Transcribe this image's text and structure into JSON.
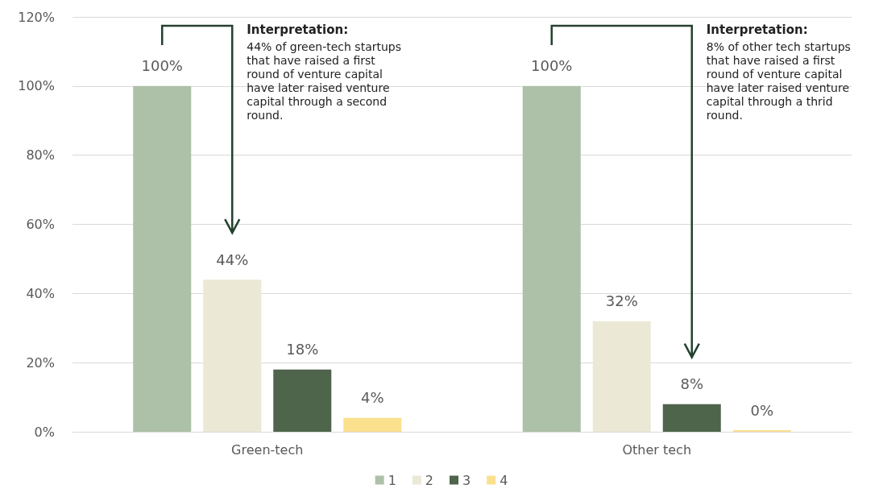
{
  "chart_data": {
    "type": "bar",
    "categories": [
      "Green-tech",
      "Other tech"
    ],
    "series": [
      {
        "name": "1",
        "color": "#adc0a8",
        "values": [
          100,
          100
        ],
        "value_labels": [
          "100%",
          "100%"
        ]
      },
      {
        "name": "2",
        "color": "#ebe9d6",
        "values": [
          44,
          32
        ],
        "value_labels": [
          "44%",
          "32%"
        ]
      },
      {
        "name": "3",
        "color": "#4e644b",
        "values": [
          18,
          8
        ],
        "value_labels": [
          "18%",
          "8%"
        ]
      },
      {
        "name": "4",
        "color": "#fbe08e",
        "values": [
          4,
          0
        ],
        "value_labels": [
          "4%",
          "0%"
        ]
      }
    ],
    "ylim": [
      0,
      120
    ],
    "yticks": [
      {
        "value": 0,
        "label": "0%"
      },
      {
        "value": 20,
        "label": "20%"
      },
      {
        "value": 40,
        "label": "40%"
      },
      {
        "value": 60,
        "label": "60%"
      },
      {
        "value": 80,
        "label": "80%"
      },
      {
        "value": 100,
        "label": "100%"
      },
      {
        "value": 120,
        "label": "120%"
      }
    ],
    "grid": "y",
    "legend": "bottom",
    "annotations": [
      "Interpretation:\n44% of green-tech startups that have raised a first round of venture capital have later raised venture capital through a second round.",
      "Interpretation:\n8% of other tech startups that have raised a first round of venture capital have later raised venture capital through a thrid round."
    ]
  }
}
